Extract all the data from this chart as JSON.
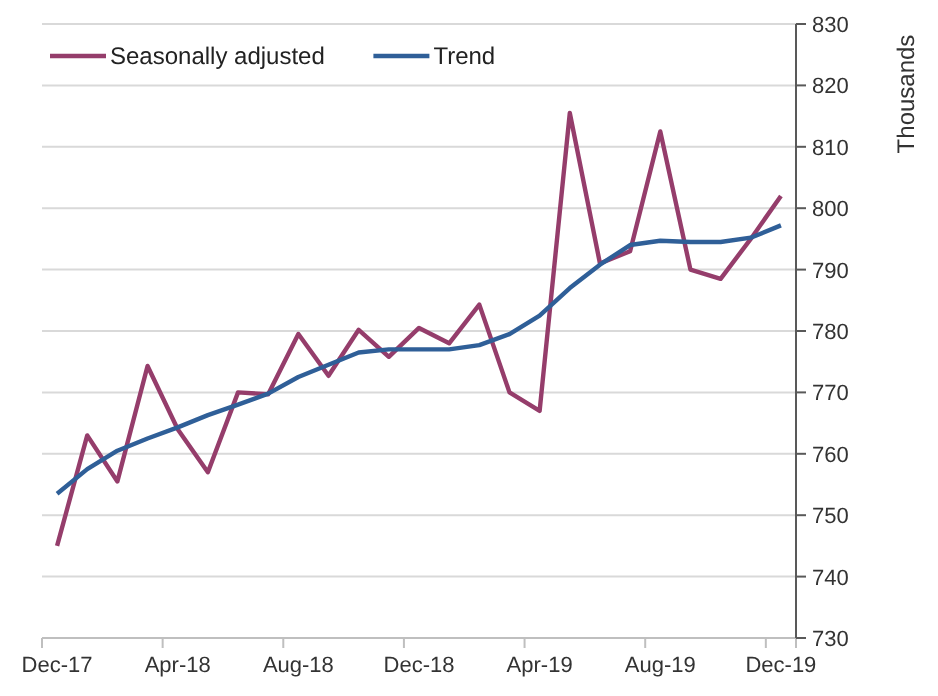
{
  "chart_data": {
    "type": "line",
    "ylabel": "Thousands",
    "categories": [
      "Dec-17",
      null,
      null,
      null,
      "Apr-18",
      null,
      null,
      null,
      "Aug-18",
      null,
      null,
      null,
      "Dec-18",
      null,
      null,
      null,
      "Apr-19",
      null,
      null,
      null,
      "Aug-19",
      null,
      null,
      null,
      "Dec-19"
    ],
    "series": [
      {
        "name": "Seasonally adjusted",
        "color": "#953d6b",
        "values": [
          745,
          763,
          755.5,
          774.3,
          764,
          757,
          770,
          769.7,
          779.5,
          772.7,
          780.2,
          775.8,
          780.5,
          778,
          784.3,
          770,
          767,
          815.5,
          791,
          793,
          812.5,
          790,
          788.5,
          795,
          802
        ]
      },
      {
        "name": "Trend",
        "color": "#2f5f98",
        "values": [
          753.5,
          757.5,
          760.5,
          762.5,
          764.3,
          766.3,
          768,
          769.8,
          772.5,
          774.5,
          776.5,
          777,
          777,
          777,
          777.7,
          779.5,
          782.5,
          787,
          790.8,
          794,
          794.7,
          794.5,
          794.5,
          795.2,
          797.2
        ]
      }
    ],
    "ylim": [
      730,
      830
    ],
    "yticks": [
      730,
      740,
      750,
      760,
      770,
      780,
      790,
      800,
      810,
      820,
      830
    ],
    "grid": "y",
    "legend": "top left",
    "marker": "none",
    "line_style": "solid"
  }
}
